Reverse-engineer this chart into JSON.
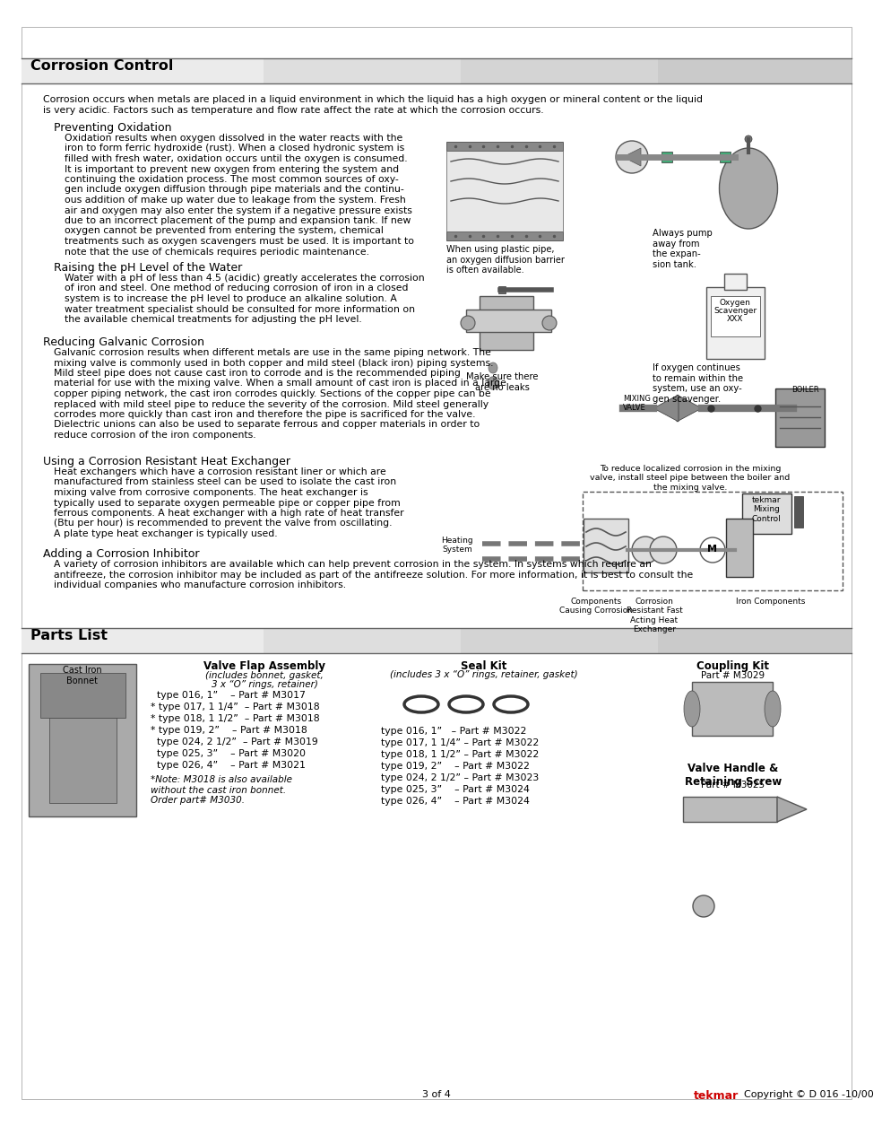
{
  "page_bg": "#ffffff",
  "section1_title": "Corrosion Control",
  "section2_title": "Parts List",
  "intro_text1": "Corrosion occurs when metals are placed in a liquid environment in which the liquid has a high oxygen or mineral content or the liquid",
  "intro_text2": "is very acidic. Factors such as temperature and flow rate affect the rate at which the corrosion occurs.",
  "sub0_title": "Preventing Oxidation",
  "sub0_body": [
    "Oxidation results when oxygen dissolved in the water reacts with the",
    "iron to form ferric hydroxide (rust). When a closed hydronic system is",
    "filled with fresh water, oxidation occurs until the oxygen is consumed.",
    "It is important to prevent new oxygen from entering the system and",
    "continuing the oxidation process. The most common sources of oxy-",
    "gen include oxygen diffusion through pipe materials and the continu-",
    "ous addition of make up water due to leakage from the system. Fresh",
    "air and oxygen may also enter the system if a negative pressure exists",
    "due to an incorrect placement of the pump and expansion tank. If new",
    "oxygen cannot be prevented from entering the system, chemical",
    "treatments such as oxygen scavengers must be used. It is important to",
    "note that the use of chemicals requires periodic maintenance."
  ],
  "sub1_title": "Raising the pH Level of the Water",
  "sub1_body": [
    "Water with a pH of less than 4.5 (acidic) greatly accelerates the corrosion",
    "of iron and steel. One method of reducing corrosion of iron in a closed",
    "system is to increase the pH level to produce an alkaline solution. A",
    "water treatment specialist should be consulted for more information on",
    "the available chemical treatments for adjusting the pH level."
  ],
  "sub2_title": "Reducing Galvanic Corrosion",
  "sub2_body": [
    "Galvanic corrosion results when different metals are use in the same piping network. The",
    "mixing valve is commonly used in both copper and mild steel (black iron) piping systems.",
    "Mild steel pipe does not cause cast iron to corrode and is the recommended piping",
    "material for use with the mixing valve. When a small amount of cast iron is placed in a large",
    "copper piping network, the cast iron corrodes quickly. Sections of the copper pipe can be",
    "replaced with mild steel pipe to reduce the severity of the corrosion. Mild steel generally",
    "corrodes more quickly than cast iron and therefore the pipe is sacrificed for the valve.",
    "Dielectric unions can also be used to separate ferrous and copper materials in order to",
    "reduce corrosion of the iron components."
  ],
  "sub3_title": "Using a Corrosion Resistant Heat Exchanger",
  "sub3_body": [
    "Heat exchangers which have a corrosion resistant liner or which are",
    "manufactured from stainless steel can be used to isolate the cast iron",
    "mixing valve from corrosive components. The heat exchanger is",
    "typically used to separate oxygen permeable pipe or copper pipe from",
    "ferrous components. A heat exchanger with a high rate of heat transfer",
    "(Btu per hour) is recommended to prevent the valve from oscillating.",
    "A plate type heat exchanger is typically used."
  ],
  "sub4_title": "Adding a Corrosion Inhibitor",
  "sub4_body": [
    "A variety of corrosion inhibitors are available which can help prevent corrosion in the system. In systems which require an",
    "antifreeze, the corrosion inhibitor may be included as part of the antifreeze solution. For more information, it is best to consult the",
    "individual companies who manufacture corrosion inhibitors."
  ],
  "img_plastic_pipe_caption": "When using plastic pipe,\nan oxygen diffusion barrier\nis often available.",
  "img_pump_caption": "Always pump\naway from\nthe expan-\nsion tank.",
  "img_valve_caption": "Make sure there\nare no leaks",
  "img_oxygen_caption": "If oxygen continues\nto remain within the\nsystem, use an oxy-\ngen scavenger.",
  "img_oxygen_label1": "Oxygen",
  "img_oxygen_label2": "Scavenger",
  "img_oxygen_label3": "XXX",
  "img_boiler_caption": "To reduce localized corrosion in the mixing\nvalve, install steel pipe between the boiler and\nthe mixing valve.",
  "img_boiler_label1": "BOILER",
  "img_mixing_valve_label": "MIXING\nVALVE",
  "img_tekmar_label": "tekmar\nMixing\nControl",
  "img_heating_label": "Heating\nSystem",
  "img_components_label": "Components\nCausing Corrosion",
  "img_corrosion_label": "Corrosion\nResistant Fast\nActing Heat\nExchanger",
  "img_iron_label": "Iron Components",
  "img_m_label": "M",
  "parts_cast_iron_label": "Cast Iron\nBonnet",
  "parts_vfa_title": "Valve Flap Assembly",
  "parts_vfa_subtitle1": "(includes bonnet, gasket,",
  "parts_vfa_subtitle2": "3 x “O” rings, retainer)",
  "parts_vfa_items": [
    "  type 016, 1”    – Part # M3017",
    "* type 017, 1 1/4”  – Part # M3018",
    "* type 018, 1 1/2”  – Part # M3018",
    "* type 019, 2”    – Part # M3018",
    "  type 024, 2 1/2”  – Part # M3019",
    "  type 025, 3”    – Part # M3020",
    "  type 026, 4”    – Part # M3021"
  ],
  "parts_vfa_note": "*Note: M3018 is also available\nwithout the cast iron bonnet.\nOrder part# M3030.",
  "parts_seal_title": "Seal Kit",
  "parts_seal_subtitle": "(includes 3 x “O” rings, retainer, gasket)",
  "parts_seal_items": [
    "type 016, 1”   – Part # M3022",
    "type 017, 1 1/4” – Part # M3022",
    "type 018, 1 1/2” – Part # M3022",
    "type 019, 2”    – Part # M3022",
    "type 024, 2 1/2” – Part # M3023",
    "type 025, 3”    – Part # M3024",
    "type 026, 4”    – Part # M3024"
  ],
  "parts_ck_title": "Coupling Kit",
  "parts_ck_subtitle": "Part # M3029",
  "parts_vh_title": "Valve Handle &\nRetaining Screw",
  "parts_vh_subtitle": "Part # M3025",
  "footer_page": "3 of 4",
  "footer_brand": "tekmar",
  "footer_copyright": "Copyright © D 016 -10/00",
  "color_header_left": "#ebebeb",
  "color_header_mid1": "#dedede",
  "color_header_mid2": "#d4d4d4",
  "color_header_right": "#cacaca",
  "color_border": "#666666",
  "color_black": "#000000",
  "color_red": "#cc0000",
  "color_grey_light": "#cccccc",
  "color_grey_med": "#aaaaaa",
  "color_grey_dark": "#888888"
}
